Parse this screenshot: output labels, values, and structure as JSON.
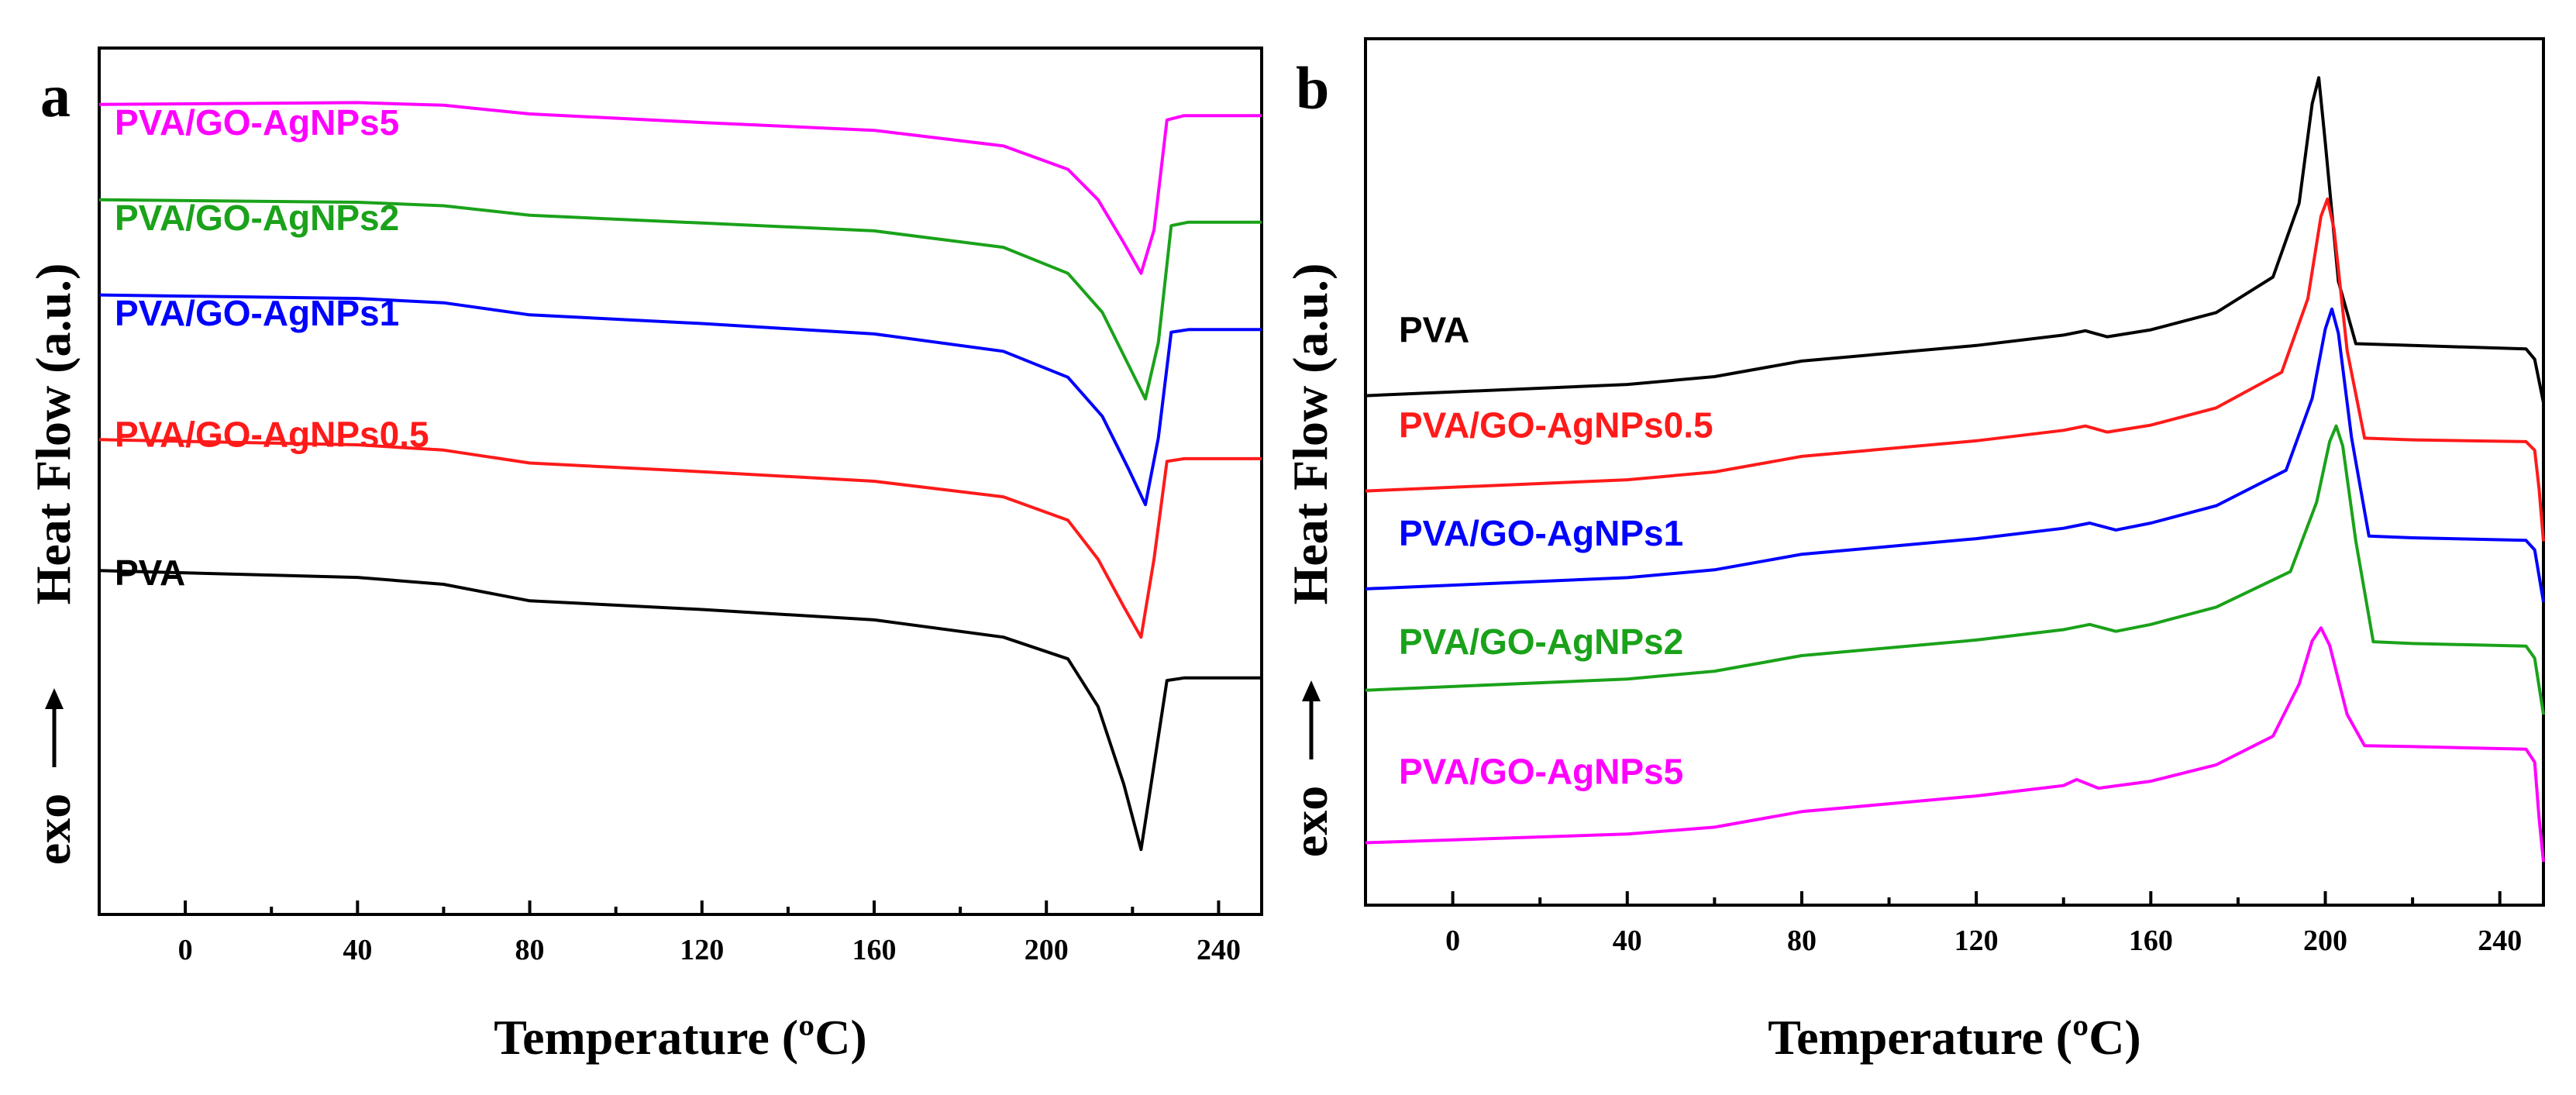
{
  "chart_data": [
    {
      "type": "line",
      "panel": "a",
      "xlabel": "Temperature (ºC)",
      "ylabel": "Heat Flow (a.u.)",
      "exo_label": "exo",
      "xlim": [
        -20,
        250
      ],
      "xticks": [
        0,
        40,
        80,
        120,
        160,
        200,
        240
      ],
      "ylim": [
        0,
        100
      ],
      "series": [
        {
          "name": "PVA/GO-AgNPs5",
          "color": "#ff00ff",
          "label_y": 90,
          "x": [
            -20,
            40,
            60,
            80,
            120,
            160,
            190,
            205,
            212,
            218,
            222,
            225,
            228,
            232,
            250
          ],
          "y": [
            93.5,
            93.7,
            93.4,
            92.4,
            91.4,
            90.5,
            88.7,
            86,
            82.5,
            77.5,
            74,
            79,
            91.7,
            92.2,
            92.2
          ]
        },
        {
          "name": "PVA/GO-AgNPs2",
          "color": "#1aa21a",
          "label_y": 79,
          "x": [
            -20,
            40,
            60,
            80,
            120,
            160,
            190,
            205,
            213,
            219,
            223,
            226,
            229,
            233,
            250
          ],
          "y": [
            82.5,
            82.2,
            81.8,
            80.7,
            79.8,
            78.9,
            77,
            74,
            69.5,
            63.5,
            59.5,
            66,
            79.5,
            79.9,
            79.9
          ]
        },
        {
          "name": "PVA/GO-AgNPs1",
          "color": "#0000ff",
          "label_y": 68,
          "x": [
            -20,
            40,
            60,
            80,
            120,
            160,
            190,
            205,
            213,
            219,
            223,
            226,
            229,
            233,
            250
          ],
          "y": [
            71.5,
            71.1,
            70.6,
            69.2,
            68.2,
            67,
            65,
            62,
            57.5,
            51.5,
            47.3,
            55,
            67.2,
            67.5,
            67.5
          ]
        },
        {
          "name": "PVA/GO-AgNPs0.5",
          "color": "#ff1a1a",
          "label_y": 54,
          "x": [
            -20,
            40,
            60,
            80,
            120,
            160,
            190,
            205,
            212,
            218,
            222,
            225,
            228,
            232,
            250
          ],
          "y": [
            54.8,
            54.2,
            53.6,
            52.1,
            51.1,
            50,
            48.2,
            45.5,
            41,
            35.5,
            32,
            41,
            52.3,
            52.6,
            52.6
          ]
        },
        {
          "name": "PVA",
          "color": "#000000",
          "label_y": 38,
          "x": [
            -20,
            40,
            60,
            80,
            120,
            160,
            190,
            205,
            212,
            218,
            222,
            224,
            228,
            232,
            250
          ],
          "y": [
            39.7,
            38.9,
            38.1,
            36.2,
            35.2,
            34,
            32,
            29.5,
            24,
            15,
            7.5,
            14,
            27,
            27.3,
            27.3
          ]
        }
      ]
    },
    {
      "type": "line",
      "panel": "b",
      "xlabel": "Temperature (ºC)",
      "ylabel": "Heat Flow (a.u.)",
      "exo_label": "exo",
      "xlim": [
        -20,
        250
      ],
      "xticks": [
        0,
        40,
        80,
        120,
        160,
        200,
        240
      ],
      "ylim": [
        0,
        100
      ],
      "series": [
        {
          "name": "PVA",
          "color": "#000000",
          "label_y": 65,
          "x": [
            -20,
            40,
            60,
            80,
            120,
            140,
            145,
            150,
            160,
            175,
            188,
            194,
            197,
            198.5,
            200,
            203,
            207,
            220,
            246,
            248,
            250
          ],
          "y": [
            58.8,
            60.1,
            61,
            62.8,
            64.6,
            65.8,
            66.3,
            65.6,
            66.4,
            68.4,
            72.5,
            81,
            92.5,
            95.5,
            88,
            72,
            64.8,
            64.6,
            64.2,
            63,
            58
          ]
        },
        {
          "name": "PVA/GO-AgNPs0.5",
          "color": "#ff1a1a",
          "label_y": 54,
          "x": [
            -20,
            40,
            60,
            80,
            120,
            140,
            145,
            150,
            160,
            175,
            190,
            196,
            199,
            200.5,
            202,
            205,
            209,
            220,
            246,
            248,
            249,
            250
          ],
          "y": [
            47.8,
            49.1,
            50,
            51.8,
            53.6,
            54.8,
            55.3,
            54.6,
            55.4,
            57.4,
            61.5,
            70,
            79.5,
            81.5,
            78,
            64,
            53.9,
            53.7,
            53.5,
            52.5,
            48,
            42
          ]
        },
        {
          "name": "PVA/GO-AgNPs1",
          "color": "#0000ff",
          "label_y": 41.5,
          "x": [
            -20,
            40,
            60,
            80,
            120,
            140,
            146,
            152,
            160,
            175,
            191,
            197,
            200,
            201.5,
            203,
            206,
            210,
            220,
            246,
            248,
            250
          ],
          "y": [
            36.5,
            37.8,
            38.7,
            40.5,
            42.3,
            43.5,
            44.1,
            43.3,
            44.1,
            46.1,
            50.2,
            58.5,
            66.5,
            68.8,
            66,
            54,
            42.6,
            42.4,
            42.1,
            41,
            35
          ]
        },
        {
          "name": "PVA/GO-AgNPs2",
          "color": "#1aa21a",
          "label_y": 29,
          "x": [
            -20,
            40,
            60,
            80,
            120,
            140,
            146,
            152,
            160,
            175,
            192,
            198,
            201,
            202.5,
            204,
            207,
            211,
            220,
            246,
            248,
            250
          ],
          "y": [
            24.8,
            26.1,
            27,
            28.8,
            30.6,
            31.8,
            32.4,
            31.6,
            32.4,
            34.4,
            38.5,
            46.5,
            53.5,
            55.3,
            53,
            42,
            30.4,
            30.2,
            29.9,
            28.5,
            22
          ]
        },
        {
          "name": "PVA/GO-AgNPs5",
          "color": "#ff00ff",
          "label_y": 14,
          "x": [
            -20,
            40,
            60,
            80,
            120,
            140,
            143,
            148,
            160,
            175,
            188,
            194,
            197,
            199,
            201,
            205,
            209,
            220,
            246,
            248,
            249,
            250
          ],
          "y": [
            7.2,
            8.2,
            9,
            10.8,
            12.6,
            13.8,
            14.5,
            13.5,
            14.3,
            16.2,
            19.5,
            25.5,
            30.5,
            32,
            30,
            22,
            18.4,
            18.3,
            18,
            16.5,
            10,
            5
          ]
        }
      ]
    }
  ]
}
